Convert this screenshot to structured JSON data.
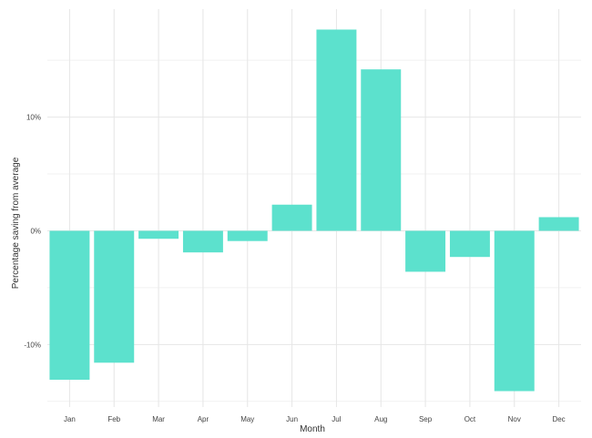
{
  "chart_data": {
    "type": "bar",
    "xlabel": "Month",
    "ylabel": "Percentage saving from average",
    "categories": [
      "Jan",
      "Feb",
      "Mar",
      "Apr",
      "May",
      "Jun",
      "Jul",
      "Aug",
      "Sep",
      "Oct",
      "Nov",
      "Dec"
    ],
    "values": [
      -13.1,
      -11.6,
      -0.7,
      -1.9,
      -0.9,
      2.3,
      17.7,
      14.2,
      -3.6,
      -2.3,
      -14.1,
      1.2
    ],
    "ylim": [
      -15.5,
      19.5
    ],
    "yticks": [
      -10,
      0,
      10
    ],
    "ytick_labels": [
      "-10%",
      "0%",
      "10%"
    ],
    "bar_color": "#5ce1cd",
    "grid": true,
    "legend": "none"
  }
}
